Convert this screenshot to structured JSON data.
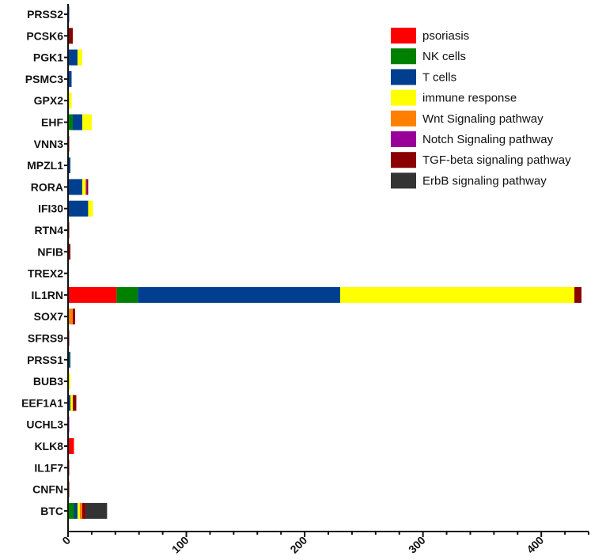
{
  "chart_data": {
    "type": "bar",
    "orientation": "horizontal",
    "stacked": true,
    "title": "",
    "xlabel": "",
    "ylabel": "",
    "xlim": [
      0,
      440
    ],
    "x_ticks": [
      0,
      100,
      200,
      300,
      400
    ],
    "grid": false,
    "legend_position": "top-right",
    "categories": [
      "PRSS2",
      "PCSK6",
      "PGK1",
      "PSMC3",
      "GPX2",
      "EHF",
      "VNN3",
      "MPZL1",
      "RORA",
      "IFI30",
      "RTN4",
      "NFIB",
      "TREX2",
      "IL1RN",
      "SOX7",
      "SFRS9",
      "PRSS1",
      "BUB3",
      "EEF1A1",
      "UCHL3",
      "KLK8",
      "IL1F7",
      "CNFN",
      "BTC"
    ],
    "series": [
      {
        "name": "psoriasis",
        "color": "#ff0000",
        "values": [
          0,
          0,
          0,
          0,
          0,
          0,
          0,
          0,
          0,
          0,
          0,
          0,
          0,
          41,
          0,
          0,
          0,
          0,
          0,
          0,
          5,
          0,
          0,
          0
        ]
      },
      {
        "name": "NK cells",
        "color": "#008000",
        "values": [
          0,
          0,
          0,
          0,
          0,
          4,
          0,
          0,
          0,
          0,
          0,
          0,
          0,
          18,
          0,
          0,
          1,
          0,
          0,
          0,
          0,
          0,
          0,
          5
        ]
      },
      {
        "name": "T cells",
        "color": "#003f8f",
        "values": [
          1,
          0,
          8,
          3,
          0,
          8,
          0,
          2,
          12,
          17,
          0,
          0,
          0,
          171,
          0,
          0,
          1,
          0,
          2,
          0,
          0,
          0,
          0,
          3
        ]
      },
      {
        "name": "immune response",
        "color": "#ffff00",
        "values": [
          0,
          0,
          4,
          0,
          3,
          8,
          0,
          0,
          3,
          4,
          0,
          0,
          0,
          198,
          0,
          0,
          0,
          2,
          2,
          0,
          0,
          0,
          0,
          2
        ]
      },
      {
        "name": "Wnt Signaling pathway",
        "color": "#ff8000",
        "values": [
          0,
          0,
          0,
          0,
          0,
          0,
          0,
          0,
          0,
          0,
          0,
          0,
          0,
          0,
          4,
          0,
          0,
          0,
          0,
          0,
          0,
          0,
          0,
          2
        ]
      },
      {
        "name": "Notch Signaling pathway",
        "color": "#990099",
        "values": [
          0,
          0,
          0,
          0,
          0,
          0,
          0,
          0,
          1,
          0,
          0,
          0,
          0,
          0,
          0,
          0,
          0,
          0,
          0,
          1,
          0,
          0,
          0,
          0
        ]
      },
      {
        "name": "TGF-beta signaling pathway",
        "color": "#8b0000",
        "values": [
          0,
          4,
          0,
          0,
          0,
          0,
          1,
          0,
          1,
          0,
          1,
          2,
          0,
          6,
          2,
          1,
          0,
          0,
          3,
          0,
          0,
          1,
          1,
          3
        ]
      },
      {
        "name": "ErbB signaling pathway",
        "color": "#333333",
        "values": [
          0,
          0,
          0,
          0,
          0,
          0,
          0,
          0,
          0,
          0,
          0,
          0,
          0,
          0,
          0,
          0,
          0,
          0,
          0,
          0,
          0,
          0,
          0,
          18
        ]
      }
    ]
  }
}
